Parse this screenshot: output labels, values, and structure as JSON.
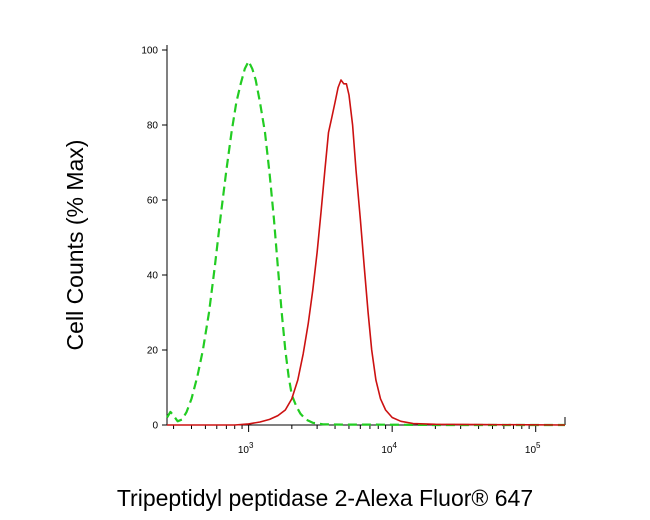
{
  "chart_data": {
    "type": "line",
    "xlabel": "Tripeptidyl peptidase 2-Alexa Fluor® 647",
    "ylabel": "Cell Counts (% Max)",
    "x_scale": "log",
    "xlim": [
      270,
      160000
    ],
    "ylim": [
      0,
      100
    ],
    "grid": false,
    "x_ticks": [
      {
        "value": 1000,
        "base": "10",
        "exp": "3"
      },
      {
        "value": 10000,
        "base": "10",
        "exp": "4"
      },
      {
        "value": 100000,
        "base": "10",
        "exp": "5"
      }
    ],
    "y_ticks": [
      {
        "value": 0,
        "label": "0"
      },
      {
        "value": 20,
        "label": "20"
      },
      {
        "value": 40,
        "label": "40"
      },
      {
        "value": 60,
        "label": "60"
      },
      {
        "value": 80,
        "label": "80"
      },
      {
        "value": 100,
        "label": "100"
      }
    ],
    "series": [
      {
        "color": "#22cc22",
        "dash": "dashed",
        "points": [
          [
            270,
            2
          ],
          [
            285,
            3.5
          ],
          [
            300,
            2.5
          ],
          [
            320,
            1
          ],
          [
            345,
            1.5
          ],
          [
            370,
            3.5
          ],
          [
            400,
            7
          ],
          [
            440,
            13
          ],
          [
            480,
            20
          ],
          [
            530,
            30
          ],
          [
            580,
            42
          ],
          [
            640,
            56
          ],
          [
            700,
            68
          ],
          [
            760,
            78
          ],
          [
            820,
            86
          ],
          [
            880,
            91
          ],
          [
            940,
            95
          ],
          [
            1000,
            97
          ],
          [
            1060,
            95
          ],
          [
            1120,
            92
          ],
          [
            1200,
            86
          ],
          [
            1300,
            78
          ],
          [
            1400,
            67
          ],
          [
            1500,
            55
          ],
          [
            1600,
            42
          ],
          [
            1700,
            30
          ],
          [
            1800,
            20
          ],
          [
            1900,
            13
          ],
          [
            2000,
            8
          ],
          [
            2150,
            5
          ],
          [
            2300,
            3
          ],
          [
            2500,
            1.5
          ],
          [
            2800,
            0.6
          ],
          [
            3300,
            0.2
          ],
          [
            4500,
            0.1
          ],
          [
            7000,
            0.1
          ],
          [
            20000,
            0
          ],
          [
            160000,
            0
          ]
        ]
      },
      {
        "color": "#cc1111",
        "dash": "solid",
        "points": [
          [
            270,
            0
          ],
          [
            800,
            0
          ],
          [
            1000,
            0.3
          ],
          [
            1200,
            0.8
          ],
          [
            1400,
            1.5
          ],
          [
            1600,
            2.5
          ],
          [
            1800,
            4
          ],
          [
            2000,
            7
          ],
          [
            2200,
            12
          ],
          [
            2400,
            19
          ],
          [
            2600,
            27
          ],
          [
            2800,
            36
          ],
          [
            3000,
            46
          ],
          [
            3200,
            57
          ],
          [
            3400,
            68
          ],
          [
            3600,
            78
          ],
          [
            3800,
            82
          ],
          [
            4000,
            86
          ],
          [
            4200,
            90
          ],
          [
            4400,
            92
          ],
          [
            4600,
            91
          ],
          [
            4800,
            91
          ],
          [
            5000,
            88
          ],
          [
            5300,
            80
          ],
          [
            5600,
            68
          ],
          [
            6000,
            55
          ],
          [
            6400,
            42
          ],
          [
            6800,
            30
          ],
          [
            7200,
            20
          ],
          [
            7700,
            12
          ],
          [
            8300,
            7
          ],
          [
            9000,
            4
          ],
          [
            10000,
            2
          ],
          [
            11500,
            1
          ],
          [
            14000,
            0.4
          ],
          [
            20000,
            0.2
          ],
          [
            40000,
            0.1
          ],
          [
            160000,
            0
          ]
        ]
      }
    ]
  }
}
